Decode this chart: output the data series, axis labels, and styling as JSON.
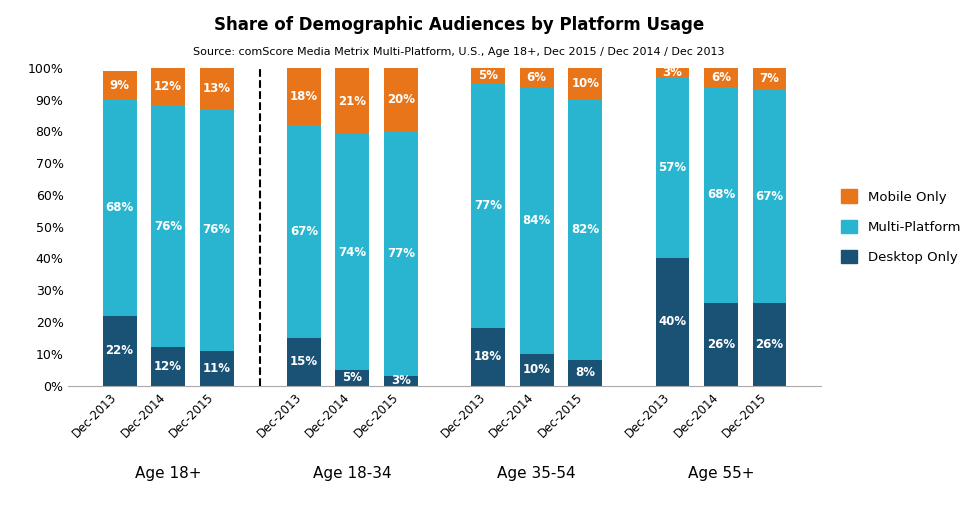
{
  "title": "Share of Demographic Audiences by Platform Usage",
  "subtitle": "Source: comScore Media Metrix Multi-Platform, U.S., Age 18+, Dec 2015 / Dec 2014 / Dec 2013",
  "groups": [
    "Age 18+",
    "Age 18-34",
    "Age 35-54",
    "Age 55+"
  ],
  "x_labels": [
    "Dec-2013",
    "Dec-2014",
    "Dec-2015",
    "Dec-2013",
    "Dec-2014",
    "Dec-2015",
    "Dec-2013",
    "Dec-2014",
    "Dec-2015",
    "Dec-2013",
    "Dec-2014",
    "Dec-2015"
  ],
  "desktop": [
    22,
    12,
    11,
    15,
    5,
    3,
    18,
    10,
    8,
    40,
    26,
    26
  ],
  "multi": [
    68,
    76,
    76,
    67,
    74,
    77,
    77,
    84,
    82,
    57,
    68,
    67
  ],
  "mobile": [
    9,
    12,
    13,
    18,
    21,
    20,
    5,
    6,
    10,
    3,
    6,
    7
  ],
  "color_desktop": "#1a5276",
  "color_multi": "#29b5d0",
  "color_mobile": "#e8751a",
  "ylim": [
    0,
    100
  ],
  "yticks": [
    0,
    10,
    20,
    30,
    40,
    50,
    60,
    70,
    80,
    90,
    100
  ],
  "yticklabels": [
    "0%",
    "10%",
    "20%",
    "30%",
    "40%",
    "50%",
    "60%",
    "70%",
    "80%",
    "90%",
    "100%"
  ],
  "legend_labels": [
    "Mobile Only",
    "Multi-Platform",
    "Desktop Only"
  ],
  "group_names": [
    "Age 18+",
    "Age 18-34",
    "Age 35-54",
    "Age 55+"
  ]
}
